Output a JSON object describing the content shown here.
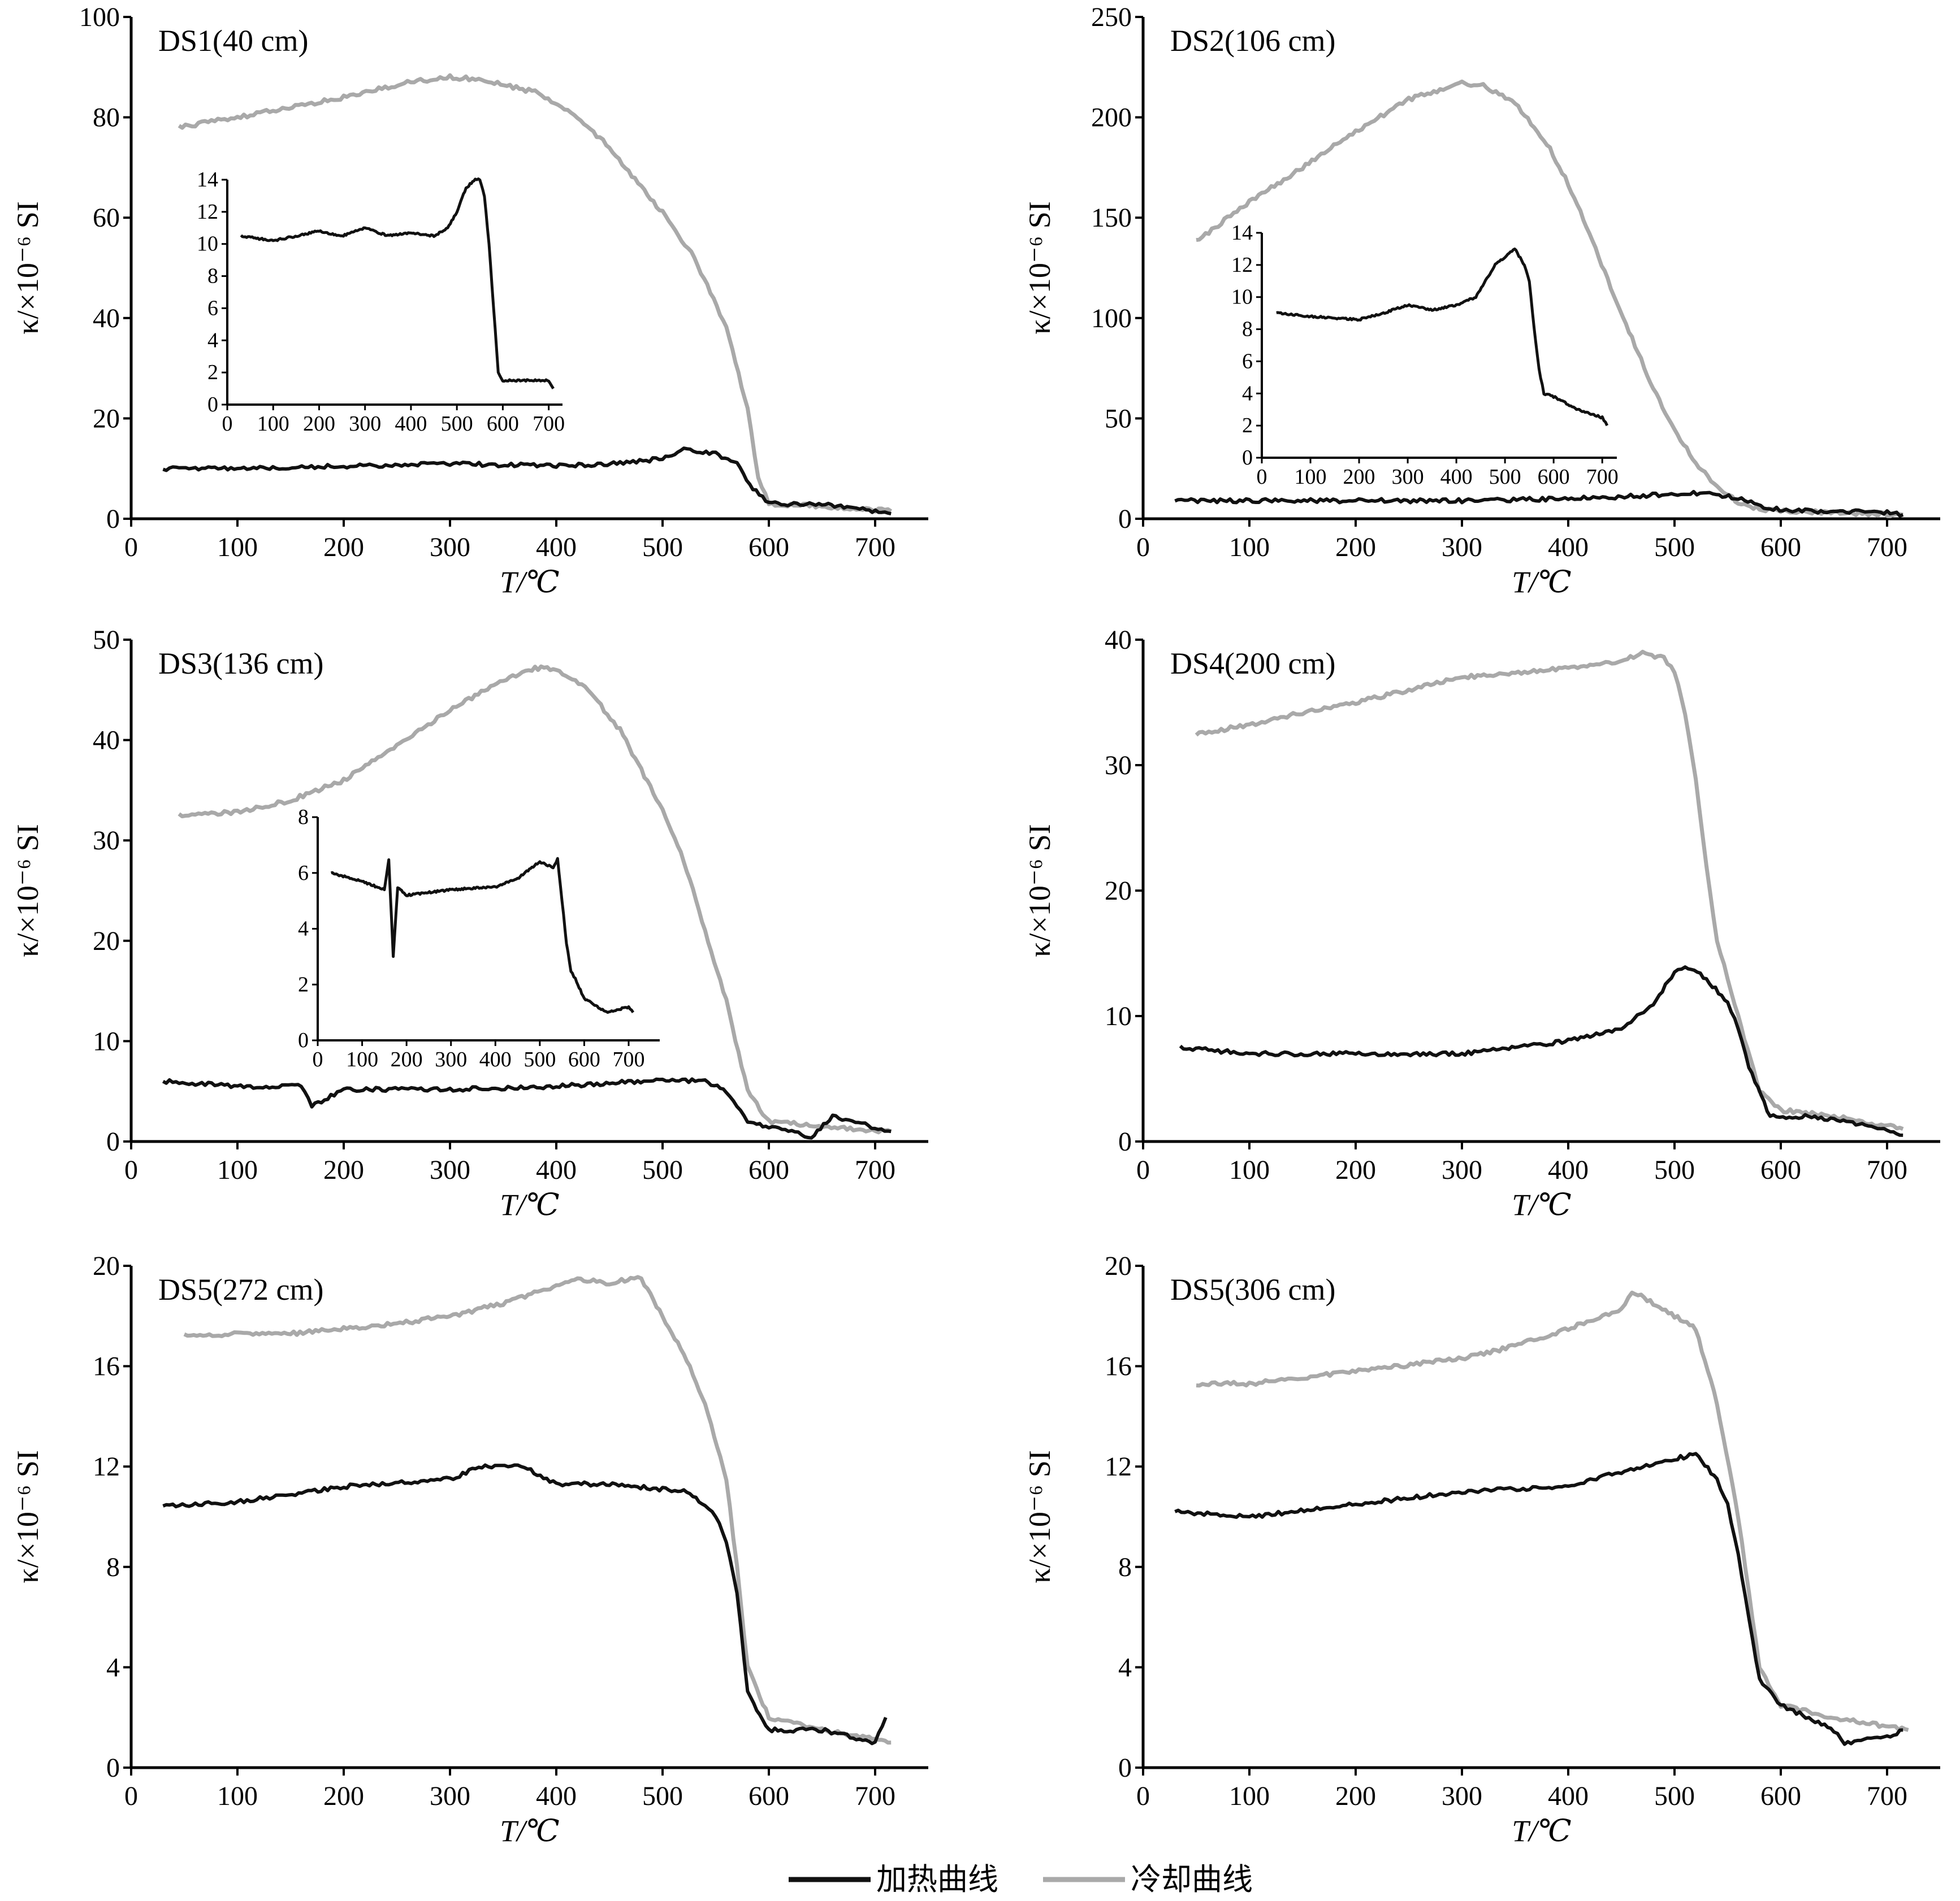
{
  "legend": {
    "heating_label": "加热曲线",
    "cooling_label": "冷却曲线",
    "heating_color": "#111111",
    "cooling_color": "#a9a9a9"
  },
  "chart_data": [
    {
      "type": "line",
      "title": "DS1(40 cm)",
      "xlabel": "T/℃",
      "ylabel": "κ/×10⁻⁶ SI",
      "xlim": [
        0,
        750
      ],
      "ylim": [
        0,
        100
      ],
      "xticks": [
        0,
        100,
        200,
        300,
        400,
        500,
        600,
        700
      ],
      "yticks": [
        0,
        20,
        40,
        60,
        80,
        100
      ],
      "series": [
        {
          "name": "加热曲线",
          "x": [
            30,
            100,
            200,
            300,
            400,
            460,
            500,
            520,
            550,
            570,
            585,
            600,
            650,
            715
          ],
          "y": [
            10,
            10,
            10.5,
            11,
            10.5,
            11,
            12,
            14,
            13,
            11,
            6,
            3,
            3,
            1
          ]
        },
        {
          "name": "冷却曲线",
          "x": [
            45,
            100,
            200,
            260,
            300,
            330,
            380,
            420,
            450,
            480,
            500,
            530,
            560,
            580,
            590,
            600,
            650,
            715
          ],
          "y": [
            78,
            80,
            84,
            87,
            88,
            87.5,
            85,
            80,
            74,
            66,
            61,
            52,
            38,
            22,
            8,
            3,
            2.5,
            1.5
          ]
        }
      ],
      "inset": {
        "xlim": [
          0,
          730
        ],
        "ylim": [
          0,
          14
        ],
        "xticks": [
          0,
          100,
          200,
          300,
          400,
          500,
          600,
          700
        ],
        "yticks": [
          0,
          2,
          4,
          6,
          8,
          10,
          12,
          14
        ],
        "series": [
          {
            "name": "加热曲线",
            "x": [
              30,
              100,
              200,
              250,
              300,
              350,
              400,
              450,
              480,
              500,
              520,
              540,
              550,
              560,
              570,
              580,
              590,
              600,
              650,
              700,
              710
            ],
            "y": [
              10.5,
              10.2,
              10.8,
              10.5,
              11,
              10.5,
              10.7,
              10.5,
              11,
              12,
              13.5,
              14,
              14,
              13,
              10,
              6,
              2,
              1.5,
              1.5,
              1.5,
              1
            ]
          }
        ]
      }
    },
    {
      "type": "line",
      "title": "DS2(106 cm)",
      "xlabel": "T/℃",
      "ylabel": "κ/×10⁻⁶ SI",
      "xlim": [
        0,
        750
      ],
      "ylim": [
        0,
        250
      ],
      "xticks": [
        0,
        100,
        200,
        300,
        400,
        500,
        600,
        700
      ],
      "yticks": [
        0,
        50,
        100,
        150,
        200,
        250
      ],
      "series": [
        {
          "name": "加热曲线",
          "x": [
            30,
            100,
            200,
            300,
            400,
            450,
            500,
            530,
            560,
            590,
            620,
            700,
            715
          ],
          "y": [
            9,
            9,
            9,
            9,
            10,
            11,
            12.5,
            13,
            10,
            5,
            4,
            3,
            2
          ]
        },
        {
          "name": "冷却曲线",
          "x": [
            50,
            100,
            150,
            200,
            250,
            300,
            320,
            350,
            380,
            400,
            420,
            440,
            460,
            480,
            500,
            520,
            540,
            560,
            580,
            600,
            650,
            715
          ],
          "y": [
            138,
            158,
            175,
            193,
            209,
            217,
            216,
            207,
            187,
            167,
            142,
            115,
            90,
            65,
            44,
            28,
            16,
            8,
            5,
            4,
            3,
            2
          ]
        }
      ],
      "inset": {
        "xlim": [
          0,
          730
        ],
        "ylim": [
          0,
          14
        ],
        "xticks": [
          0,
          100,
          200,
          300,
          400,
          500,
          600,
          700
        ],
        "yticks": [
          0,
          2,
          4,
          6,
          8,
          10,
          12,
          14
        ],
        "series": [
          {
            "name": "加热曲线",
            "x": [
              30,
              100,
              200,
              250,
              300,
              350,
              400,
              440,
              460,
              480,
              500,
              520,
              540,
              550,
              560,
              570,
              580,
              600,
              650,
              700,
              710
            ],
            "y": [
              9,
              8.8,
              8.6,
              9,
              9.5,
              9.2,
              9.5,
              10,
              11,
              12,
              12.5,
              13,
              12,
              11,
              8,
              5.5,
              4,
              3.8,
              3,
              2.5,
              2
            ]
          }
        ]
      }
    },
    {
      "type": "line",
      "title": "DS3(136 cm)",
      "xlabel": "T/℃",
      "ylabel": "κ/×10⁻⁶ SI",
      "xlim": [
        0,
        750
      ],
      "ylim": [
        0,
        50
      ],
      "xticks": [
        0,
        100,
        200,
        300,
        400,
        500,
        600,
        700
      ],
      "yticks": [
        0,
        10,
        20,
        30,
        40,
        50
      ],
      "series": [
        {
          "name": "加热曲线",
          "x": [
            30,
            100,
            160,
            170,
            200,
            300,
            400,
            450,
            500,
            540,
            560,
            570,
            580,
            600,
            640,
            660,
            715
          ],
          "y": [
            6,
            5.5,
            5.5,
            3.5,
            5.2,
            5.2,
            5.5,
            5.8,
            6.2,
            6,
            5,
            3.5,
            2,
            1.5,
            0.5,
            2.5,
            1
          ]
        },
        {
          "name": "冷却曲线",
          "x": [
            45,
            100,
            150,
            200,
            250,
            300,
            350,
            380,
            400,
            430,
            460,
            480,
            500,
            520,
            540,
            560,
            580,
            600,
            650,
            715
          ],
          "y": [
            32.5,
            32.8,
            34,
            36,
            39.5,
            43,
            46,
            47.2,
            47,
            45,
            41,
            37,
            33,
            28,
            21,
            14,
            5,
            2,
            1.5,
            1
          ]
        }
      ],
      "inset": {
        "xlim": [
          0,
          770
        ],
        "ylim": [
          0,
          8
        ],
        "xticks": [
          0,
          100,
          200,
          300,
          400,
          500,
          600,
          700
        ],
        "yticks": [
          0,
          2,
          4,
          6,
          8
        ],
        "series": [
          {
            "name": "加热曲线",
            "x": [
              30,
              100,
              150,
              160,
              170,
              180,
              200,
              300,
              400,
              450,
              500,
              530,
              540,
              550,
              560,
              570,
              580,
              600,
              650,
              700,
              710
            ],
            "y": [
              6,
              5.7,
              5.4,
              6.5,
              3,
              5.5,
              5.2,
              5.4,
              5.5,
              5.8,
              6.4,
              6.2,
              6.5,
              5,
              3.5,
              2.5,
              2.2,
              1.5,
              1,
              1.2,
              1
            ]
          }
        ]
      }
    },
    {
      "type": "line",
      "title": "DS4(200 cm)",
      "xlabel": "T/℃",
      "ylabel": "κ/×10⁻⁶ SI",
      "xlim": [
        0,
        750
      ],
      "ylim": [
        0,
        40
      ],
      "xticks": [
        0,
        100,
        200,
        300,
        400,
        500,
        600,
        700
      ],
      "yticks": [
        0,
        10,
        20,
        30,
        40
      ],
      "series": [
        {
          "name": "加热曲线",
          "x": [
            35,
            100,
            200,
            300,
            350,
            400,
            450,
            480,
            500,
            510,
            530,
            550,
            560,
            570,
            590,
            620,
            650,
            700,
            715
          ],
          "y": [
            7.5,
            7,
            7,
            7,
            7.5,
            8,
            9,
            11,
            13.5,
            14,
            13,
            11,
            9,
            6,
            2,
            2,
            1.8,
            1,
            0.5
          ]
        },
        {
          "name": "冷却曲线",
          "x": [
            50,
            100,
            150,
            200,
            250,
            300,
            350,
            400,
            450,
            470,
            490,
            500,
            510,
            520,
            530,
            540,
            550,
            560,
            580,
            600,
            650,
            715
          ],
          "y": [
            32.5,
            33.2,
            34.2,
            35,
            36,
            37,
            37.3,
            37.8,
            38.3,
            39,
            38.5,
            37.5,
            34,
            29,
            22,
            16,
            13,
            10,
            4,
            2.5,
            2,
            1
          ]
        }
      ]
    },
    {
      "type": "line",
      "title": "DS5(272 cm)",
      "xlabel": "T/℃",
      "ylabel": "κ/×10⁻⁶ SI",
      "xlim": [
        0,
        750
      ],
      "ylim": [
        0,
        20
      ],
      "xticks": [
        0,
        100,
        200,
        300,
        400,
        500,
        600,
        700
      ],
      "yticks": [
        0,
        4,
        8,
        12,
        16,
        20
      ],
      "series": [
        {
          "name": "加热曲线",
          "x": [
            30,
            100,
            200,
            300,
            330,
            370,
            400,
            450,
            500,
            520,
            540,
            550,
            560,
            570,
            580,
            600,
            620,
            650,
            700,
            710
          ],
          "y": [
            10.4,
            10.6,
            11.2,
            11.5,
            12,
            12,
            11.3,
            11.3,
            11.1,
            11,
            10.5,
            10,
            9,
            7,
            3,
            1.5,
            1.5,
            1.5,
            1,
            2
          ]
        },
        {
          "name": "冷却曲线",
          "x": [
            50,
            100,
            150,
            200,
            250,
            300,
            350,
            400,
            420,
            450,
            470,
            480,
            500,
            520,
            540,
            560,
            570,
            580,
            600,
            650,
            715
          ],
          "y": [
            17.2,
            17.3,
            17.3,
            17.5,
            17.7,
            18,
            18.5,
            19.2,
            19.5,
            19.3,
            19.5,
            19.5,
            18,
            16.5,
            14.5,
            11.5,
            8,
            4,
            2,
            1.5,
            1
          ]
        }
      ]
    },
    {
      "type": "line",
      "title": "DS5(306 cm)",
      "xlabel": "T/℃",
      "ylabel": "κ/×10⁻⁶ SI",
      "xlim": [
        0,
        750
      ],
      "ylim": [
        0,
        20
      ],
      "xticks": [
        0,
        100,
        200,
        300,
        400,
        500,
        600,
        700
      ],
      "yticks": [
        0,
        4,
        8,
        12,
        16,
        20
      ],
      "series": [
        {
          "name": "加热曲线",
          "x": [
            30,
            100,
            200,
            300,
            400,
            450,
            500,
            520,
            540,
            550,
            560,
            570,
            580,
            600,
            650,
            660,
            700,
            715
          ],
          "y": [
            10.2,
            10,
            10.5,
            11,
            11.2,
            11.8,
            12.3,
            12.5,
            11.5,
            10.5,
            8.5,
            6,
            3.5,
            2.5,
            1.5,
            1,
            1.2,
            1.5
          ]
        },
        {
          "name": "冷却曲线",
          "x": [
            50,
            100,
            200,
            300,
            350,
            400,
            450,
            460,
            480,
            500,
            520,
            540,
            560,
            570,
            580,
            600,
            650,
            720
          ],
          "y": [
            15.3,
            15.3,
            15.8,
            16.3,
            16.8,
            17.5,
            18.3,
            19,
            18.5,
            18,
            17.5,
            14.5,
            10,
            7,
            4,
            2.5,
            2,
            1.5
          ]
        }
      ]
    }
  ]
}
